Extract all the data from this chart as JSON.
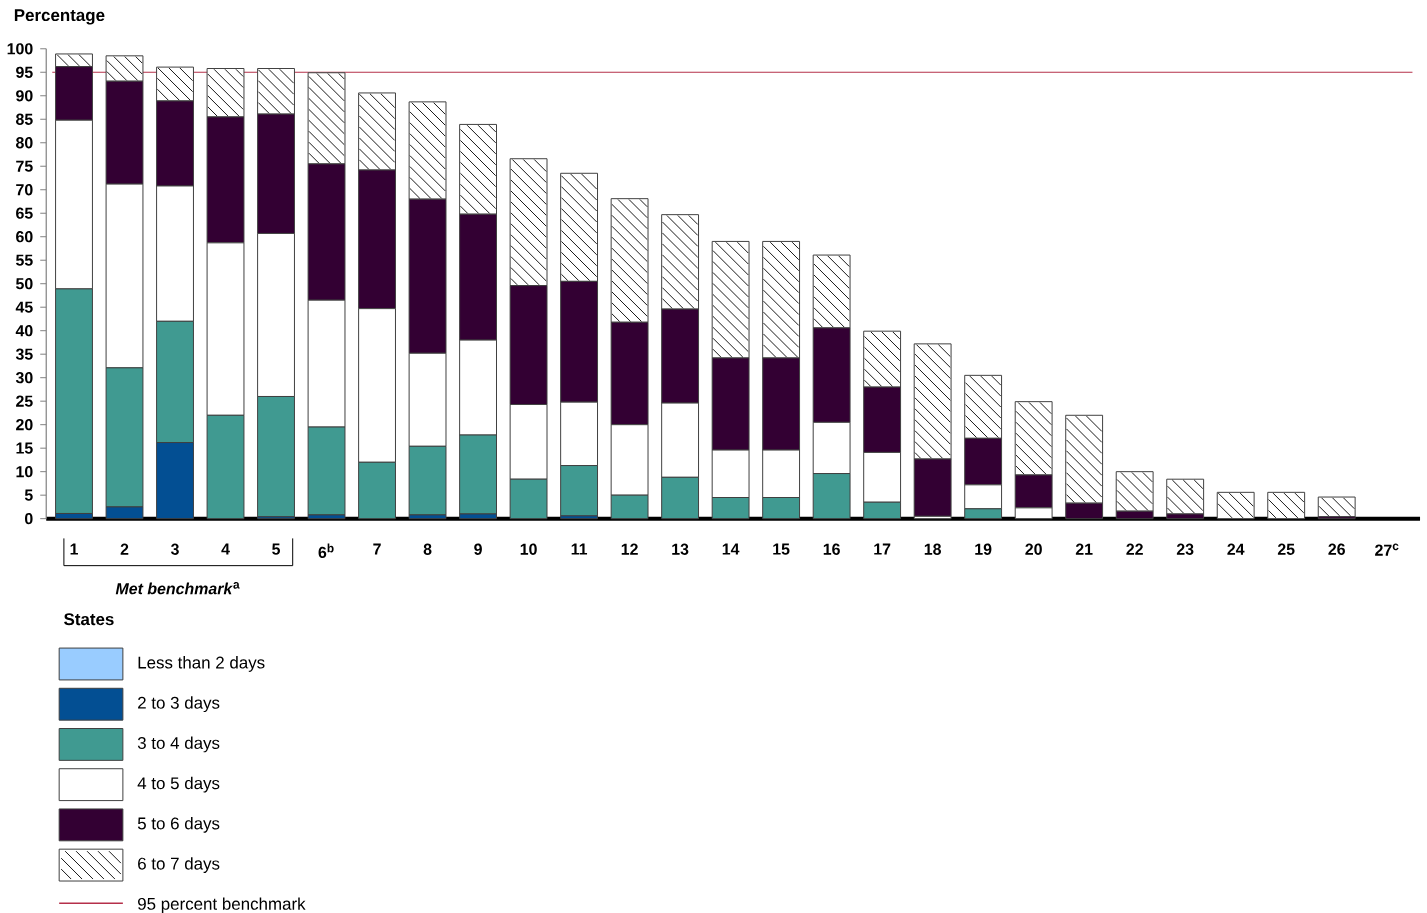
{
  "chart_data": {
    "type": "bar",
    "stacked": true,
    "ylabel": "Percentage",
    "legend_title": "States",
    "legend": "bottom left",
    "categories": [
      "1",
      "2",
      "3",
      "4",
      "5",
      "6$^{b}$",
      "7",
      "8",
      "9",
      "10",
      "11",
      "12",
      "13",
      "14",
      "15",
      "16",
      "17",
      "18",
      "19",
      "20",
      "21",
      "22",
      "23",
      "24",
      "25",
      "26",
      "27$^{c}$"
    ],
    "ylim": [
      0,
      100
    ],
    "yticks": [
      0,
      5,
      10,
      15,
      20,
      25,
      30,
      35,
      40,
      45,
      50,
      55,
      60,
      65,
      70,
      75,
      80,
      85,
      90,
      95,
      100
    ],
    "series": [
      {
        "name": "Less than 2 days",
        "color": "#99ccff",
        "values": [
          0,
          0,
          0,
          0,
          0,
          0,
          0,
          0,
          0,
          0,
          0,
          0,
          0,
          0,
          0,
          0,
          0,
          0,
          0,
          0,
          0,
          0,
          0,
          0,
          0,
          0,
          0
        ]
      },
      {
        "name": "2 to 3 days",
        "color": "#034f93",
        "values": [
          1.1,
          2.5,
          16.2,
          0,
          0.4,
          0.8,
          0,
          0.8,
          1.0,
          0,
          0.6,
          0,
          0,
          0,
          0,
          0,
          0,
          0,
          0,
          0,
          0,
          0,
          0,
          0,
          0,
          0,
          0
        ]
      },
      {
        "name": "3 to 4 days",
        "color": "#409a91",
        "values": [
          47.8,
          29.6,
          25.8,
          22.0,
          25.6,
          18.7,
          12.0,
          14.6,
          16.8,
          8.4,
          10.7,
          5.0,
          8.8,
          4.5,
          4.5,
          9.6,
          3.5,
          0,
          2.1,
          0,
          0,
          0,
          0,
          0,
          0,
          0,
          0
        ]
      },
      {
        "name": "4 to 5 days",
        "color": "#ffffff",
        "values": [
          35.9,
          39.1,
          28.8,
          36.7,
          34.7,
          27.0,
          32.7,
          19.8,
          20.2,
          15.9,
          13.5,
          15.0,
          15.8,
          10.1,
          10.1,
          10.9,
          10.6,
          0.5,
          5.1,
          2.3,
          0,
          0,
          0,
          0,
          0,
          0,
          0
        ]
      },
      {
        "name": "5 to 6 days",
        "color": "#330033",
        "values": [
          11.4,
          21.9,
          18.1,
          26.8,
          25.4,
          29.0,
          29.5,
          32.8,
          26.8,
          25.3,
          25.7,
          21.8,
          20.0,
          19.6,
          19.6,
          20.1,
          13.9,
          12.2,
          9.9,
          7.0,
          3.3,
          1.6,
          1.0,
          0,
          0,
          0.4,
          0
        ]
      },
      {
        "name": "6 to 7 days",
        "color": "#ffffff",
        "values": [
          2.7,
          5.4,
          7.2,
          10.3,
          9.7,
          19.4,
          16.4,
          20.7,
          19.1,
          27.0,
          23.0,
          26.3,
          20.1,
          24.8,
          24.8,
          15.5,
          11.9,
          24.5,
          13.4,
          15.6,
          18.7,
          8.4,
          7.4,
          5.6,
          5.6,
          4.2,
          0
        ]
      }
    ],
    "ref_lines": [
      {
        "axis": "y",
        "value": 95,
        "label": "95 percent benchmark",
        "color": "#b5304a"
      }
    ],
    "annotations": [
      "*Met benchmark*$^{a}$"
    ]
  }
}
